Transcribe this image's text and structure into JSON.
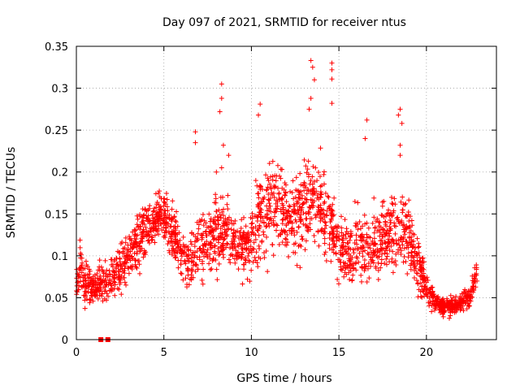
{
  "chart_data": {
    "type": "scatter",
    "title": "Day 097 of 2021, SRMTID for receiver ntus",
    "xlabel": "GPS time / hours",
    "ylabel": "SRMTID / TECUs",
    "xlim": [
      0,
      24
    ],
    "ylim": [
      0,
      0.35
    ],
    "xticks": [
      0,
      5,
      10,
      15,
      20
    ],
    "xtick_labels": [
      "0",
      "5",
      "10",
      "15",
      "20"
    ],
    "yticks": [
      0,
      0.05,
      0.1,
      0.15,
      0.2,
      0.25,
      0.3,
      0.35
    ],
    "ytick_labels": [
      "0",
      "0.05",
      "0.1",
      "0.15",
      "0.2",
      "0.25",
      "0.3",
      "0.35"
    ],
    "grid": true,
    "marker": "+",
    "series": [
      {
        "name": "SRMTID",
        "color": "#ff0000",
        "profile": {
          "x": [
            0,
            0.2,
            0.5,
            1.0,
            1.5,
            2.0,
            2.5,
            3.0,
            3.5,
            4.0,
            4.5,
            5.0,
            5.5,
            6.0,
            6.5,
            7.0,
            7.5,
            8.0,
            8.5,
            9.0,
            9.5,
            10.0,
            10.5,
            11.0,
            11.5,
            12.0,
            12.5,
            13.0,
            13.5,
            14.0,
            14.5,
            15.0,
            15.5,
            16.0,
            16.5,
            17.0,
            17.5,
            18.0,
            18.5,
            19.0,
            19.5,
            20.0,
            20.5,
            21.0,
            21.5,
            22.0,
            22.5,
            22.9
          ],
          "y_mean": [
            0.07,
            0.09,
            0.065,
            0.06,
            0.07,
            0.075,
            0.085,
            0.1,
            0.115,
            0.13,
            0.145,
            0.15,
            0.13,
            0.1,
            0.09,
            0.11,
            0.12,
            0.125,
            0.13,
            0.12,
            0.105,
            0.12,
            0.15,
            0.155,
            0.16,
            0.15,
            0.145,
            0.165,
            0.175,
            0.155,
            0.135,
            0.11,
            0.1,
            0.11,
            0.105,
            0.11,
            0.12,
            0.125,
            0.135,
            0.12,
            0.09,
            0.06,
            0.045,
            0.04,
            0.04,
            0.045,
            0.05,
            0.085
          ],
          "y_spread": [
            0.025,
            0.03,
            0.025,
            0.02,
            0.02,
            0.025,
            0.03,
            0.03,
            0.03,
            0.03,
            0.025,
            0.03,
            0.03,
            0.03,
            0.035,
            0.04,
            0.04,
            0.045,
            0.04,
            0.035,
            0.035,
            0.05,
            0.05,
            0.05,
            0.05,
            0.045,
            0.05,
            0.05,
            0.055,
            0.05,
            0.045,
            0.04,
            0.04,
            0.04,
            0.04,
            0.04,
            0.04,
            0.045,
            0.05,
            0.045,
            0.04,
            0.02,
            0.012,
            0.012,
            0.012,
            0.012,
            0.015,
            0.012
          ]
        },
        "outliers": [
          {
            "x": 6.8,
            "y": 0.248
          },
          {
            "x": 6.8,
            "y": 0.235
          },
          {
            "x": 8.3,
            "y": 0.305
          },
          {
            "x": 8.3,
            "y": 0.288
          },
          {
            "x": 8.2,
            "y": 0.272
          },
          {
            "x": 8.4,
            "y": 0.232
          },
          {
            "x": 8.3,
            "y": 0.205
          },
          {
            "x": 8.7,
            "y": 0.22
          },
          {
            "x": 8.0,
            "y": 0.2
          },
          {
            "x": 10.5,
            "y": 0.281
          },
          {
            "x": 10.4,
            "y": 0.268
          },
          {
            "x": 13.4,
            "y": 0.333
          },
          {
            "x": 13.5,
            "y": 0.325
          },
          {
            "x": 13.6,
            "y": 0.31
          },
          {
            "x": 13.4,
            "y": 0.288
          },
          {
            "x": 13.3,
            "y": 0.275
          },
          {
            "x": 14.6,
            "y": 0.33
          },
          {
            "x": 14.6,
            "y": 0.322
          },
          {
            "x": 14.6,
            "y": 0.311
          },
          {
            "x": 14.6,
            "y": 0.282
          },
          {
            "x": 16.6,
            "y": 0.262
          },
          {
            "x": 16.5,
            "y": 0.24
          },
          {
            "x": 18.5,
            "y": 0.275
          },
          {
            "x": 18.4,
            "y": 0.268
          },
          {
            "x": 18.6,
            "y": 0.258
          },
          {
            "x": 18.5,
            "y": 0.232
          },
          {
            "x": 18.5,
            "y": 0.22
          }
        ],
        "zero_points": [
          1.4,
          1.8
        ]
      }
    ]
  }
}
